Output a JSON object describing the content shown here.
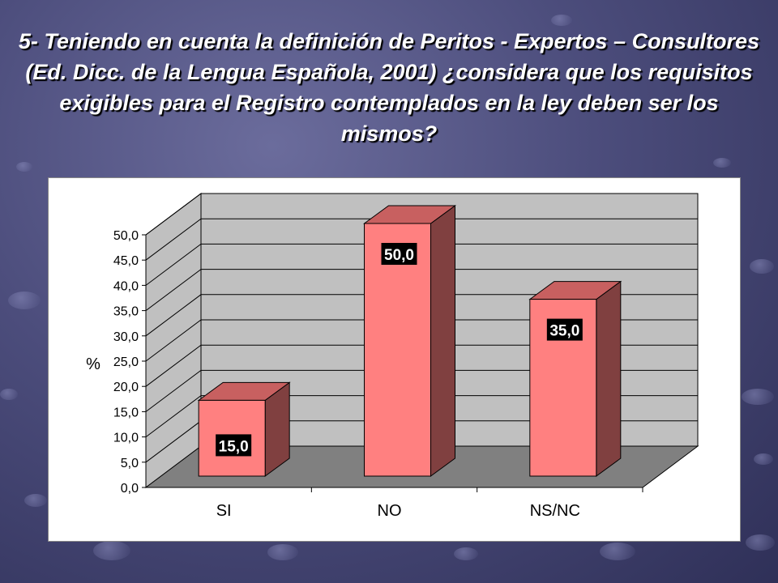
{
  "slide": {
    "title": "5- Teniendo en cuenta la definición de Peritos - Expertos – Consultores (Ed. Dicc. de la Lengua Española, 2001) ¿considera que los requisitos exigibles para el Registro contemplados en la ley deben ser los mismos?"
  },
  "chart_data": {
    "type": "bar",
    "title": "",
    "xlabel": "",
    "ylabel": "%",
    "ylim": [
      0,
      50
    ],
    "grid": true,
    "legend": "none",
    "categories": [
      "SI",
      "NO",
      "NS/NC"
    ],
    "values": [
      15,
      50,
      35
    ],
    "value_labels": [
      "15,0",
      "50,0",
      "35,0"
    ],
    "y_ticks": [
      0,
      5,
      10,
      15,
      20,
      25,
      30,
      35,
      40,
      45,
      50
    ],
    "y_tick_labels": [
      "0,0",
      "5,0",
      "10,0",
      "15,0",
      "20,0",
      "25,0",
      "30,0",
      "35,0",
      "40,0",
      "45,0",
      "50,0"
    ],
    "colors": {
      "bar_front": "#ff8080",
      "bar_top": "#c86060",
      "bar_side": "#804040",
      "back_wall": "#c0c0c0",
      "side_wall": "#c0c0c0",
      "floor": "#808080",
      "label_bg": "#000000",
      "label_text": "#ffffff"
    }
  }
}
